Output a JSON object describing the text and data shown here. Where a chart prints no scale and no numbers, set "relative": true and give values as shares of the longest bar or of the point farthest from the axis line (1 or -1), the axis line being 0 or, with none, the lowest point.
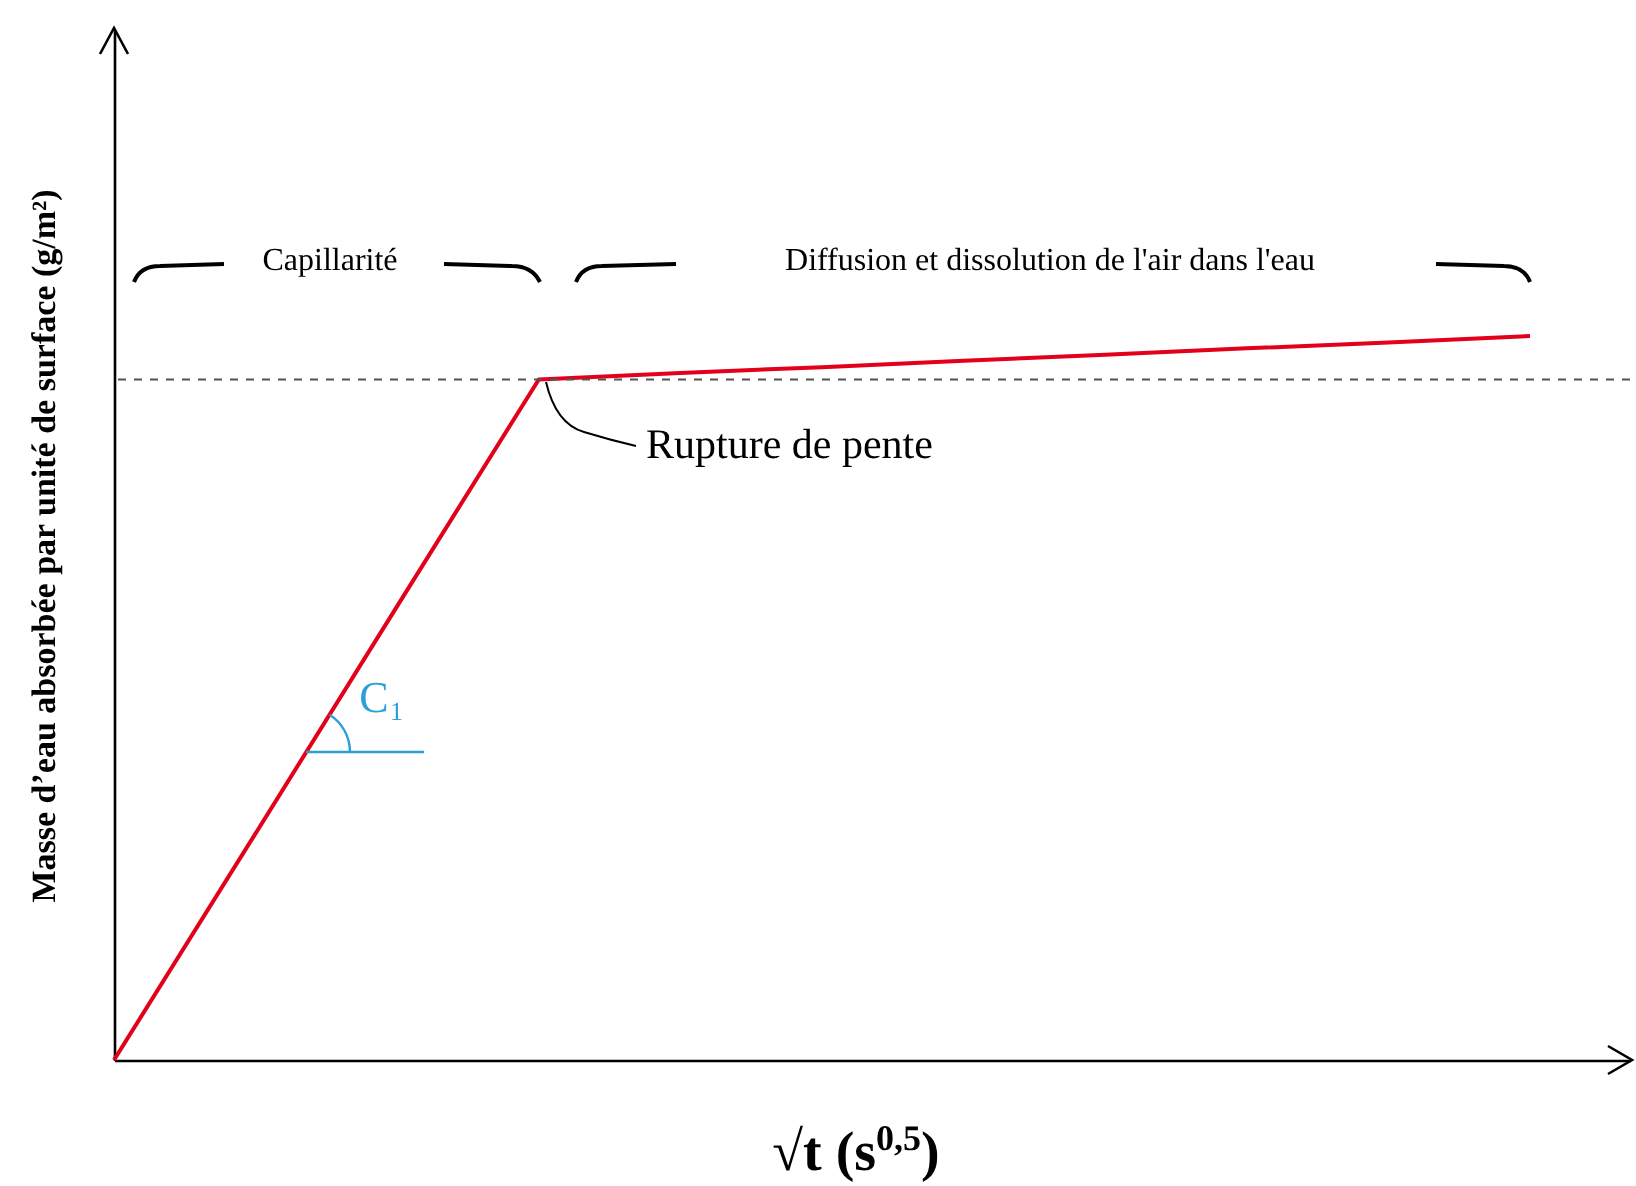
{
  "chart_data": {
    "type": "line",
    "relative": true,
    "xlabel": "√t (s$^{0,5}$)",
    "ylabel": "Masse d’eau absorbée par unité de surface (g/m²)",
    "categories": [
      null,
      null,
      null,
      null,
      null,
      null,
      null,
      null,
      null,
      null,
      null
    ],
    "series": [
      {
        "color": "#e2001a",
        "values": [
          0,
          0.313,
          0.627,
          0.94,
          0.949,
          0.957,
          0.966,
          0.974,
          0.983,
          0.991,
          1
        ]
      }
    ],
    "marker": "none",
    "line_style": "solid",
    "ref_lines": [
      {
        "axis": "y",
        "value": 0.94,
        "color": "#555555",
        "line_style": "dashed"
      }
    ],
    "annotations": [
      "Capillarité",
      "Diffusion et dissolution de l'air dans l'eau",
      "Rupture de pente",
      "C$_{1}$"
    ]
  }
}
